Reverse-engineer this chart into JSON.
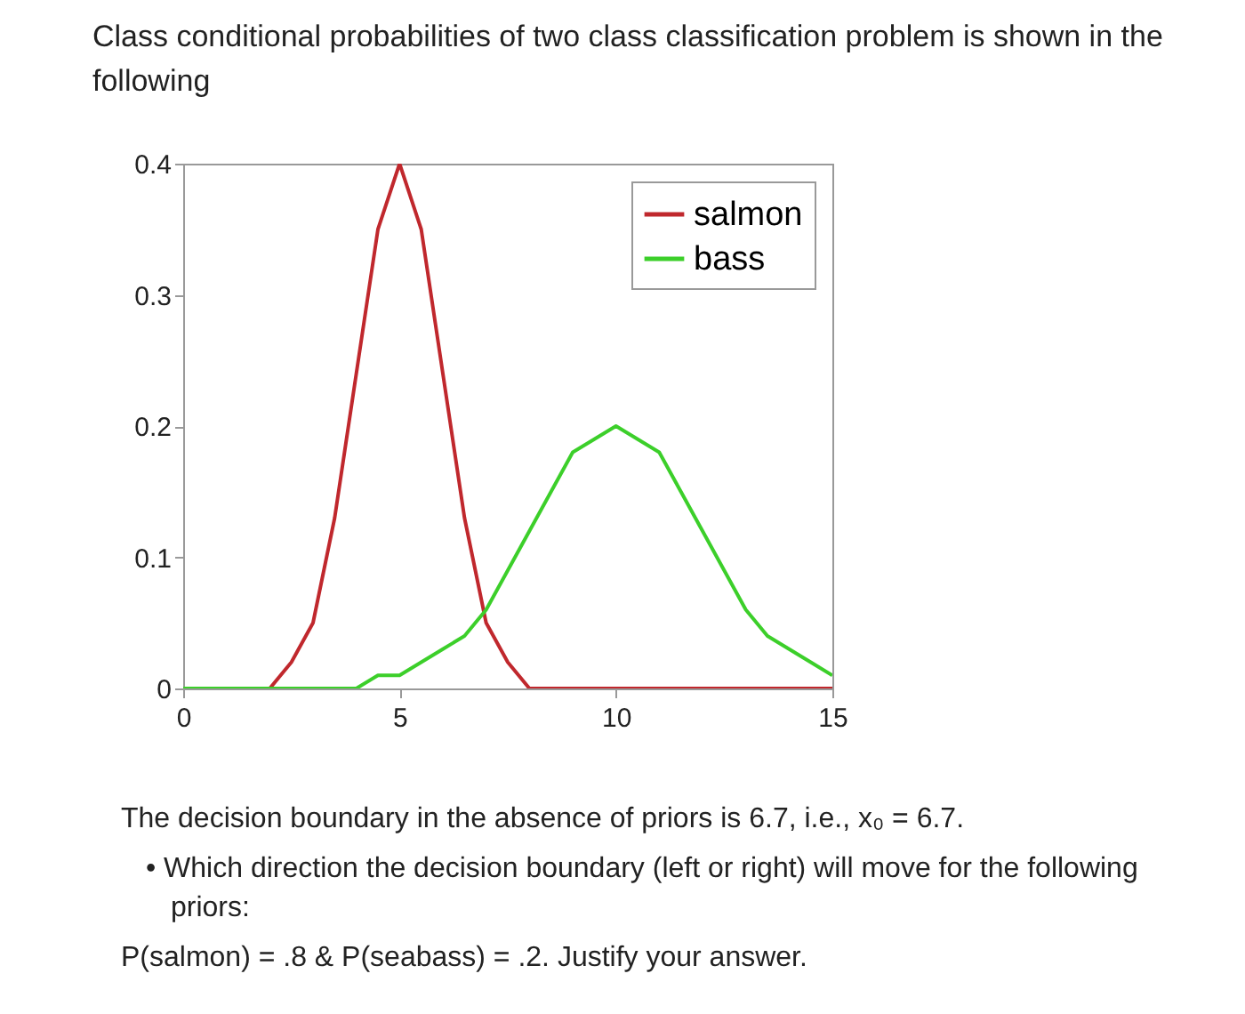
{
  "chart_data": {
    "type": "line",
    "title": "Class conditional probabilities of two class classification problem is shown in the following",
    "x": [
      0,
      0.5,
      1,
      1.5,
      2,
      2.5,
      3,
      3.5,
      4,
      4.5,
      5,
      5.5,
      6,
      6.5,
      7,
      7.5,
      8,
      8.5,
      9,
      9.5,
      10,
      10.5,
      11,
      11.5,
      12,
      12.5,
      13,
      13.5,
      14,
      14.5,
      15
    ],
    "series": [
      {
        "name": "salmon",
        "color": "#c0282d",
        "values": [
          null,
          null,
          null,
          0,
          0,
          0.02,
          0.05,
          0.13,
          0.24,
          0.35,
          0.4,
          0.35,
          0.24,
          0.13,
          0.05,
          0.02,
          0,
          0,
          0,
          0,
          0,
          0,
          0,
          0,
          0,
          0,
          0,
          0,
          0,
          0,
          0
        ]
      },
      {
        "name": "bass",
        "color": "#3ccf2a",
        "values": [
          0,
          0,
          0,
          0,
          0,
          0,
          0,
          0,
          0,
          0.01,
          0.01,
          0.02,
          0.03,
          0.04,
          0.06,
          0.09,
          0.12,
          0.15,
          0.18,
          0.19,
          0.2,
          0.19,
          0.18,
          0.15,
          0.12,
          0.09,
          0.06,
          0.04,
          0.03,
          0.02,
          0.01
        ]
      }
    ],
    "xlim": [
      0,
      15
    ],
    "xticks": [
      0,
      5,
      10,
      15
    ],
    "ylim": [
      0,
      0.4
    ],
    "yticks": [
      0,
      0.1,
      0.2,
      0.3,
      0.4
    ],
    "legend": "top right",
    "grid": false,
    "line_style": "solid",
    "marker": "none",
    "annotations": [
      "The decision boundary in the absence of priors is 6.7, i.e., x₀ = 6.7.",
      "• Which direction the decision boundary (left or right) will move for the following priors:",
      "P(salmon) = .8 & P(seabass) = .2. Justify your answer."
    ]
  }
}
